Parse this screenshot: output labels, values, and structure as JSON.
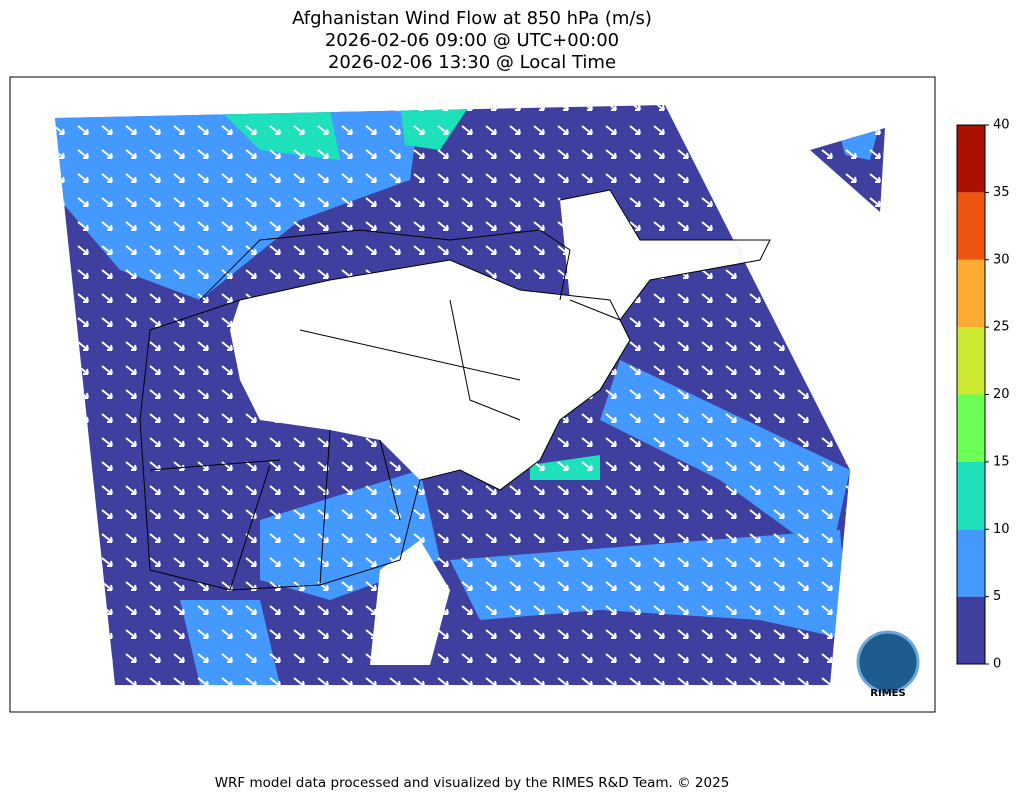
{
  "header": {
    "title_lines": [
      "Afghanistan Wind Flow at 850 hPa (m/s)",
      "2026-02-06 09:00 @ UTC+00:00",
      "2026-02-06 13:30 @ Local Time"
    ]
  },
  "colorbar": {
    "levels": [
      0,
      5,
      10,
      15,
      20,
      25,
      30,
      35,
      40
    ],
    "colors": [
      "#3f3f9f",
      "#4499ff",
      "#1ee0bb",
      "#6cff55",
      "#cce830",
      "#ffaa33",
      "#ee5511",
      "#aa1100"
    ]
  },
  "logo": {
    "text": "RIMES"
  },
  "footer": {
    "text": "WRF model data processed and visualized by the RIMES R&D Team. © 2025"
  }
}
